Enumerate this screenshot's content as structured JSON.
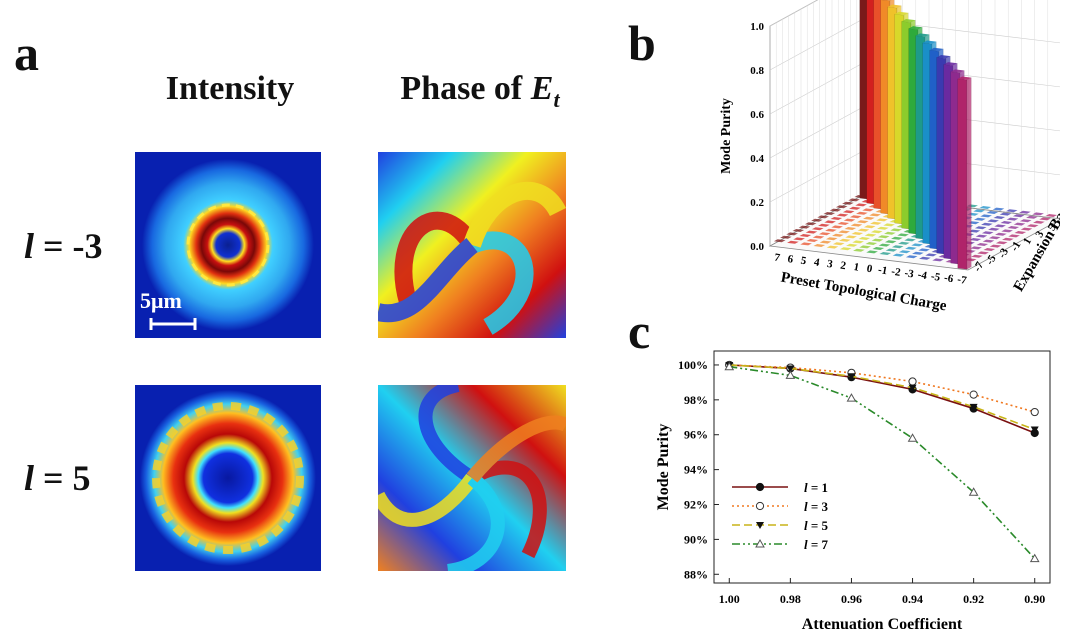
{
  "panel_a": {
    "letter": "a",
    "col_intensity": "Intensity",
    "col_phase_prefix": "Phase of ",
    "col_phase_var": "E",
    "col_phase_sub": "t",
    "rows": [
      {
        "l_symbol": "l",
        "l_value": "= -3"
      },
      {
        "l_symbol": "l",
        "l_value": "= 5"
      }
    ],
    "scalebar": "5μm"
  },
  "panel_b": {
    "letter": "b"
  },
  "panel_c": {
    "letter": "c"
  },
  "chart_data": [
    {
      "type": "bar",
      "subtype": "3d-bar",
      "ylabel": "Mode Purity",
      "xlabel": "Preset Topological Charge",
      "zlabel": "Expansion Base",
      "yticks": [
        "0.0",
        "0.2",
        "0.4",
        "0.6",
        "0.8",
        "1.0"
      ],
      "xticks": [
        "7",
        "6",
        "5",
        "4",
        "3",
        "2",
        "1",
        "0",
        "-1",
        "-2",
        "-3",
        "-4",
        "-5",
        "-6",
        "-7"
      ],
      "zticks": [
        "-7",
        "-5",
        "-3",
        "-1",
        "1",
        "3",
        "5",
        "7"
      ],
      "categories": [
        "7",
        "6",
        "5",
        "4",
        "3",
        "2",
        "1",
        "0",
        "-1",
        "-2",
        "-3",
        "-4",
        "-5",
        "-6",
        "-7"
      ],
      "values": [
        1.0,
        0.99,
        0.98,
        0.97,
        0.96,
        0.95,
        0.94,
        0.93,
        0.92,
        0.91,
        0.9,
        0.89,
        0.88,
        0.87,
        0.86
      ],
      "ylim": [
        0,
        1
      ],
      "colors": [
        "#7a1a1a",
        "#d21f1f",
        "#e8502a",
        "#f08a28",
        "#f0c22a",
        "#d8d82a",
        "#8ccc2c",
        "#2eaa3c",
        "#1e9a8a",
        "#1a8fc8",
        "#2060c8",
        "#3a3ab0",
        "#6a2aa0",
        "#8e2a8e",
        "#b0246a"
      ]
    },
    {
      "type": "line",
      "xlabel": "Attenuation Coefficient",
      "ylabel": "Mode Purity",
      "x": [
        1.0,
        0.98,
        0.96,
        0.94,
        0.92,
        0.9
      ],
      "xticks": [
        "1.00",
        "0.98",
        "0.96",
        "0.94",
        "0.92",
        "0.90"
      ],
      "yticks": [
        "88%",
        "90%",
        "92%",
        "94%",
        "96%",
        "98%",
        "100%"
      ],
      "ylim": [
        87.5,
        100.8
      ],
      "series": [
        {
          "name": "l = 1",
          "symbol": "l",
          "value": "= 1",
          "values": [
            100.0,
            99.8,
            99.3,
            98.6,
            97.5,
            96.1
          ],
          "color": "#7a1010",
          "dash": "",
          "marker": "filled-circle"
        },
        {
          "name": "l = 3",
          "symbol": "l",
          "value": "= 3",
          "values": [
            100.0,
            99.85,
            99.55,
            99.05,
            98.3,
            97.3
          ],
          "color": "#f07820",
          "dash": "2,3",
          "marker": "open-circle"
        },
        {
          "name": "l = 5",
          "symbol": "l",
          "value": "= 5",
          "values": [
            100.0,
            99.8,
            99.35,
            98.7,
            97.6,
            96.3
          ],
          "color": "#c8b418",
          "dash": "8,4",
          "marker": "filled-triangle"
        },
        {
          "name": "l = 7",
          "symbol": "l",
          "value": "= 7",
          "values": [
            99.9,
            99.4,
            98.1,
            95.8,
            92.7,
            88.9
          ],
          "color": "#2a8a2a",
          "dash": "8,3,2,3,2,3",
          "marker": "open-triangle"
        }
      ],
      "legend": "bottom-left"
    }
  ]
}
